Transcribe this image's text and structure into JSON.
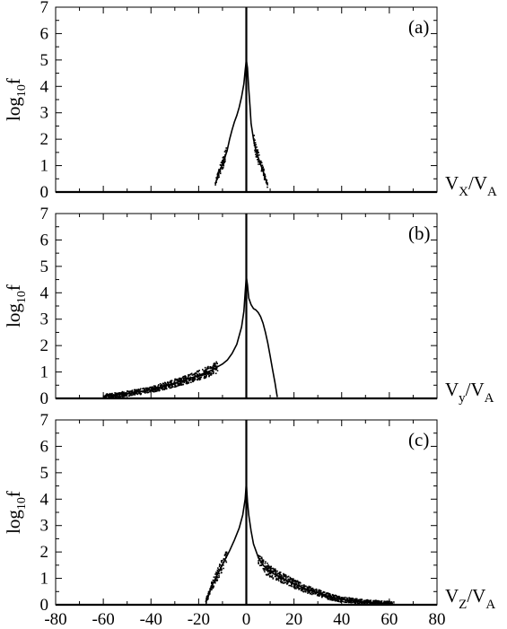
{
  "chart_data": [
    {
      "type": "scatter",
      "panel_label": "(a)",
      "ylabel": "log10f",
      "ylabel_main": "log",
      "ylabel_sub": "10",
      "ylabel_tail": "f",
      "xlabel_main": "V",
      "xlabel_sub": "X",
      "xlabel_sep": "/V",
      "xlabel_sub2": "A",
      "xlim": [
        -80,
        80
      ],
      "ylim": [
        0,
        7
      ],
      "yticks": [
        "0",
        "1",
        "2",
        "3",
        "4",
        "5",
        "6",
        "7"
      ],
      "show_xtick_labels": false,
      "xticks": [
        "-80",
        "-60",
        "-40",
        "-20",
        "0",
        "20",
        "40",
        "60",
        "80"
      ],
      "grid": false,
      "spike": {
        "x": 0,
        "y": 7
      },
      "profile": [
        [
          -13,
          0.3
        ],
        [
          -12,
          0.6
        ],
        [
          -11,
          0.85
        ],
        [
          -10,
          1.05
        ],
        [
          -9,
          1.3
        ],
        [
          -8,
          1.6
        ],
        [
          -7,
          2.0
        ],
        [
          -6,
          2.35
        ],
        [
          -5,
          2.65
        ],
        [
          -4,
          2.9
        ],
        [
          -3,
          3.2
        ],
        [
          -2,
          3.6
        ],
        [
          -1,
          4.1
        ],
        [
          -0.5,
          4.6
        ],
        [
          0,
          5.0
        ],
        [
          0.5,
          4.7
        ],
        [
          1,
          3.9
        ],
        [
          1.5,
          3.3
        ],
        [
          2,
          2.6
        ],
        [
          3,
          2.0
        ],
        [
          4,
          1.6
        ],
        [
          5,
          1.3
        ],
        [
          6,
          1.05
        ],
        [
          7,
          0.8
        ],
        [
          8,
          0.5
        ],
        [
          9,
          0.25
        ]
      ],
      "scatter_ranges": [
        [
          -13,
          -8
        ],
        [
          3,
          9
        ]
      ],
      "baseline_range": [
        -80,
        80
      ]
    },
    {
      "type": "scatter",
      "panel_label": "(b)",
      "ylabel": "log10f",
      "ylabel_main": "log",
      "ylabel_sub": "10",
      "ylabel_tail": "f",
      "xlabel_main": "V",
      "xlabel_sub": "y",
      "xlabel_sep": "/V",
      "xlabel_sub2": "A",
      "xlim": [
        -80,
        80
      ],
      "ylim": [
        0,
        7
      ],
      "yticks": [
        "0",
        "1",
        "2",
        "3",
        "4",
        "5",
        "6",
        "7"
      ],
      "show_xtick_labels": false,
      "xticks": [
        "-80",
        "-60",
        "-40",
        "-20",
        "0",
        "20",
        "40",
        "60",
        "80"
      ],
      "grid": false,
      "spike": {
        "x": 0,
        "y": 7
      },
      "profile": [
        [
          -60,
          0.08
        ],
        [
          -55,
          0.12
        ],
        [
          -50,
          0.18
        ],
        [
          -45,
          0.25
        ],
        [
          -40,
          0.33
        ],
        [
          -35,
          0.45
        ],
        [
          -30,
          0.58
        ],
        [
          -25,
          0.72
        ],
        [
          -20,
          0.87
        ],
        [
          -15,
          1.05
        ],
        [
          -12,
          1.2
        ],
        [
          -10,
          1.3
        ],
        [
          -8,
          1.45
        ],
        [
          -6,
          1.7
        ],
        [
          -4,
          2.05
        ],
        [
          -2,
          2.7
        ],
        [
          -1,
          3.3
        ],
        [
          -0.5,
          4.0
        ],
        [
          0,
          4.6
        ],
        [
          0.5,
          4.3
        ],
        [
          1,
          3.8
        ],
        [
          2,
          3.55
        ],
        [
          3,
          3.4
        ],
        [
          4,
          3.35
        ],
        [
          5,
          3.25
        ],
        [
          6,
          3.1
        ],
        [
          7,
          2.85
        ],
        [
          8,
          2.5
        ],
        [
          9,
          2.1
        ],
        [
          10,
          1.6
        ],
        [
          11,
          1.1
        ],
        [
          12,
          0.6
        ],
        [
          13,
          0.05
        ]
      ],
      "scatter_ranges": [
        [
          -60,
          -12
        ]
      ],
      "baseline_range": [
        -80,
        80
      ]
    },
    {
      "type": "scatter",
      "panel_label": "(c)",
      "ylabel": "log10f",
      "ylabel_main": "log",
      "ylabel_sub": "10",
      "ylabel_tail": "f",
      "xlabel_main": "V",
      "xlabel_sub": "Z",
      "xlabel_sep": "/V",
      "xlabel_sub2": "A",
      "xlim": [
        -80,
        80
      ],
      "ylim": [
        0,
        7
      ],
      "yticks": [
        "0",
        "1",
        "2",
        "3",
        "4",
        "5",
        "6",
        "7"
      ],
      "show_xtick_labels": true,
      "xticks": [
        "-80",
        "-60",
        "-40",
        "-20",
        "0",
        "20",
        "40",
        "60",
        "80"
      ],
      "grid": false,
      "spike": {
        "x": 0,
        "y": 7
      },
      "profile": [
        [
          -17,
          0.1
        ],
        [
          -15,
          0.6
        ],
        [
          -13,
          1.0
        ],
        [
          -11,
          1.35
        ],
        [
          -9,
          1.7
        ],
        [
          -7,
          2.05
        ],
        [
          -5,
          2.45
        ],
        [
          -3,
          2.9
        ],
        [
          -1.5,
          3.4
        ],
        [
          -0.5,
          4.0
        ],
        [
          0,
          4.6
        ],
        [
          0.5,
          3.9
        ],
        [
          1,
          3.4
        ],
        [
          2,
          2.8
        ],
        [
          3,
          2.3
        ],
        [
          5,
          1.8
        ],
        [
          7,
          1.5
        ],
        [
          10,
          1.25
        ],
        [
          15,
          1.0
        ],
        [
          20,
          0.8
        ],
        [
          25,
          0.6
        ],
        [
          30,
          0.45
        ],
        [
          35,
          0.3
        ],
        [
          40,
          0.2
        ],
        [
          50,
          0.1
        ],
        [
          60,
          0.05
        ]
      ],
      "scatter_ranges": [
        [
          -17,
          -8
        ],
        [
          5,
          62
        ]
      ],
      "baseline_range": [
        -80,
        80
      ]
    }
  ]
}
